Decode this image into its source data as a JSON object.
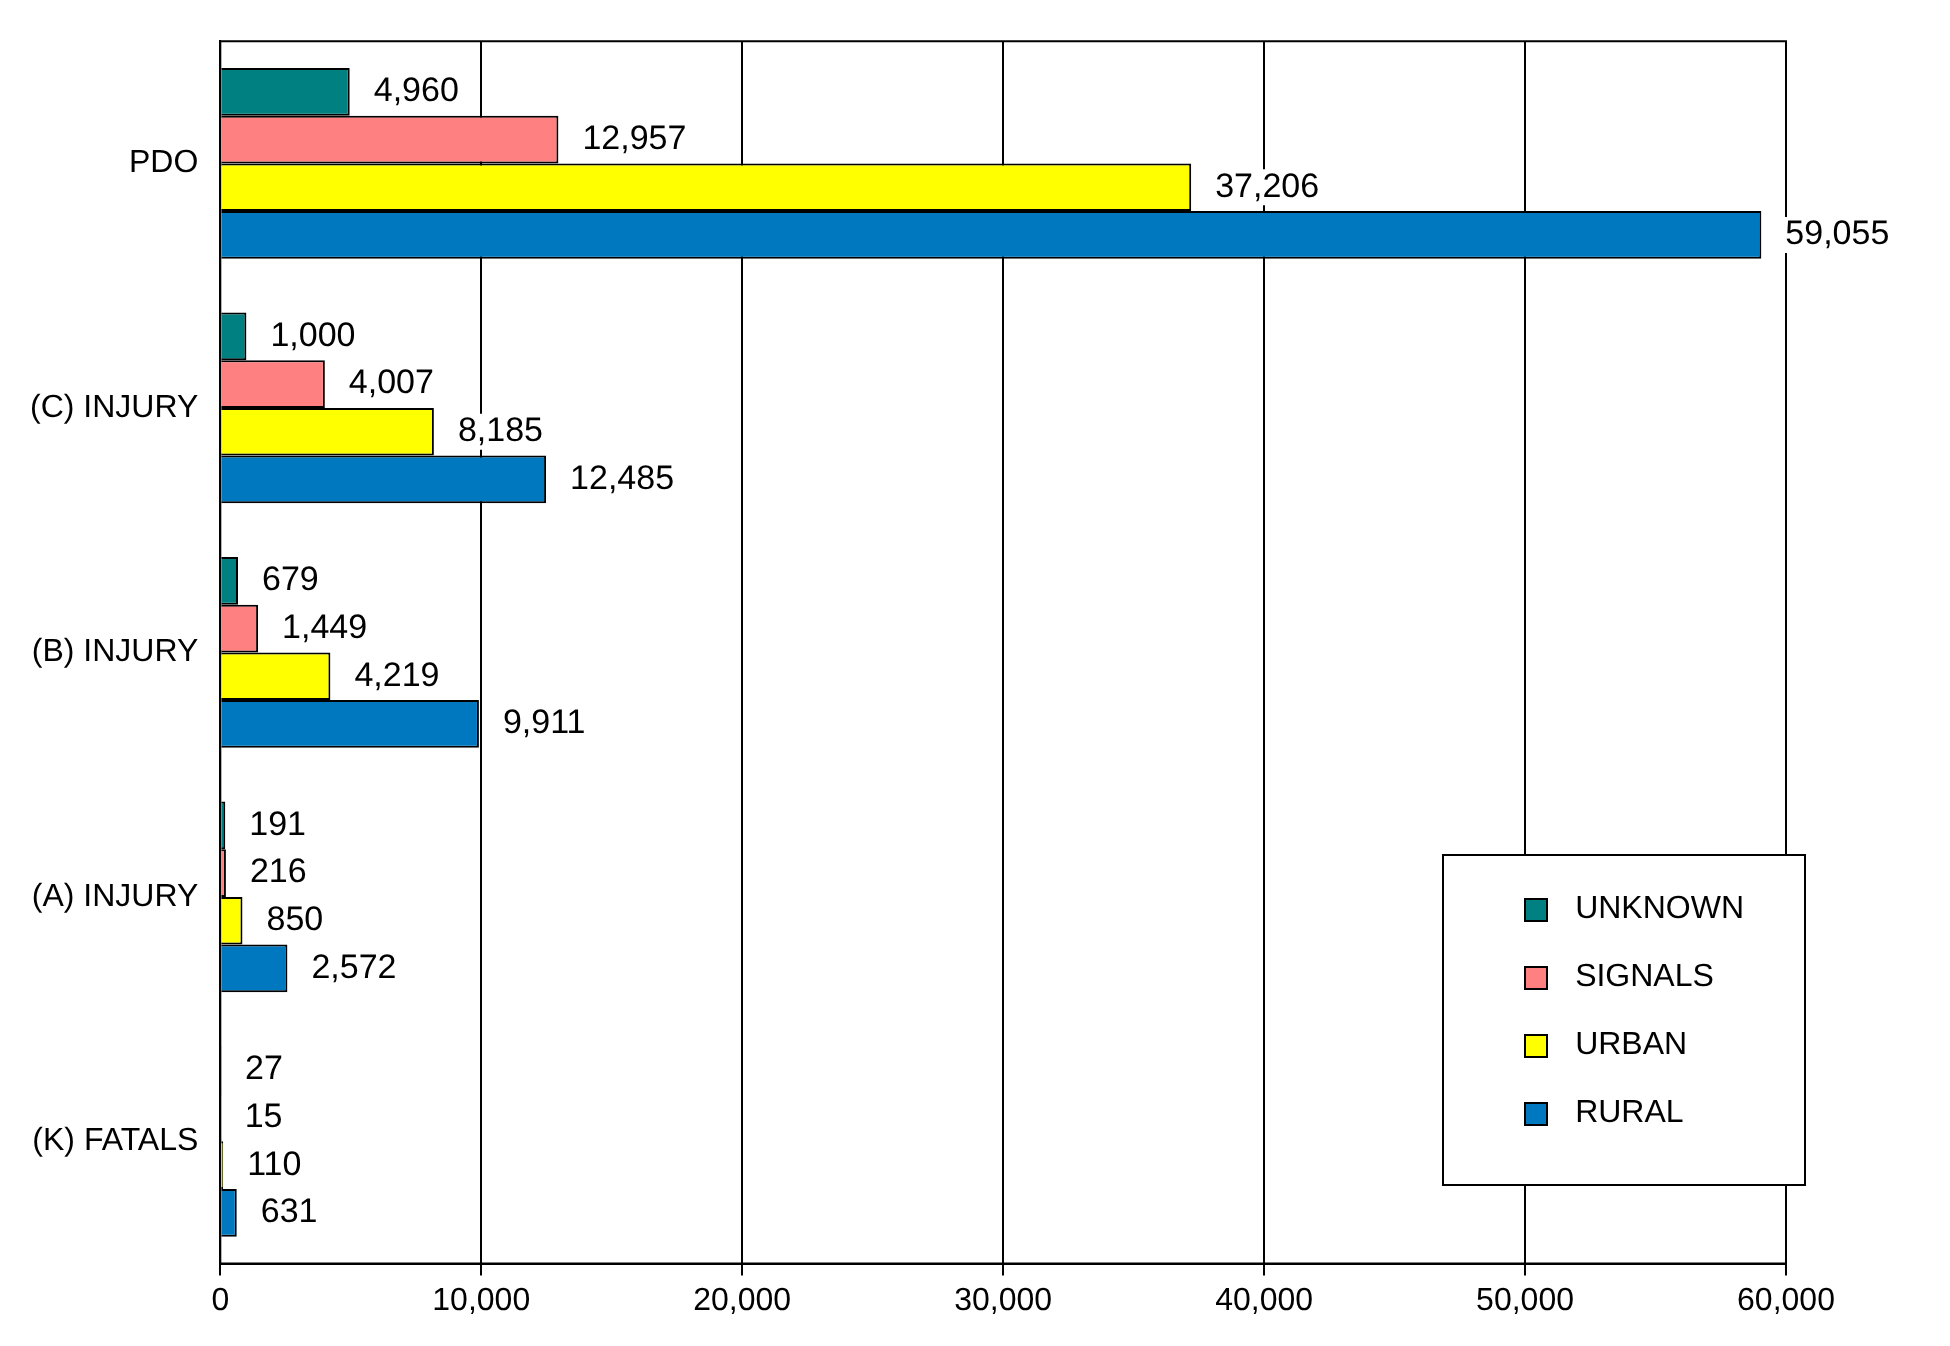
{
  "chart_data": {
    "type": "bar",
    "orientation": "horizontal",
    "categories": [
      "PDO",
      "(C) INJURY",
      "(B) INJURY",
      "(A) INJURY",
      "(K) FATALS"
    ],
    "series": [
      {
        "name": "UNKNOWN",
        "color": "#008080",
        "values": [
          4960,
          1000,
          679,
          191,
          27
        ],
        "value_labels": [
          "4,960",
          "1,000",
          "679",
          "191",
          "27"
        ]
      },
      {
        "name": "SIGNALS",
        "color": "#ff8080",
        "values": [
          12957,
          4007,
          1449,
          216,
          15
        ],
        "value_labels": [
          "12,957",
          "4,007",
          "1,449",
          "216",
          "15"
        ]
      },
      {
        "name": "URBAN",
        "color": "#ffff00",
        "values": [
          37206,
          8185,
          4219,
          850,
          110
        ],
        "value_labels": [
          "37,206",
          "8,185",
          "4,219",
          "850",
          "110"
        ]
      },
      {
        "name": "RURAL",
        "color": "#0078c0",
        "values": [
          59055,
          12485,
          9911,
          2572,
          631
        ],
        "value_labels": [
          "59,055",
          "12,485",
          "9,911",
          "2,572",
          "631"
        ]
      }
    ],
    "xlim": [
      0,
      60000
    ],
    "xticks": [
      0,
      {
        "value": 10000,
        "label": "10,000"
      },
      {
        "value": 20000,
        "label": "20,000"
      },
      {
        "value": 30000,
        "label": "30,000"
      },
      {
        "value": 40000,
        "label": "40,000"
      },
      {
        "value": 50000,
        "label": "50,000"
      },
      {
        "value": 60000,
        "label": "60,000"
      }
    ],
    "grid": "x",
    "legend": "bottom right"
  }
}
